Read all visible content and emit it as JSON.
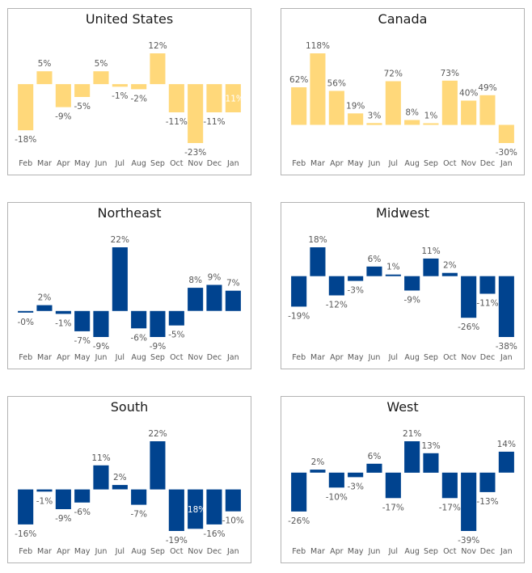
{
  "chart_data": [
    {
      "type": "bar",
      "title": "United States",
      "color": "#FFD87A",
      "categories": [
        "Feb",
        "Mar",
        "Apr",
        "May",
        "Jun",
        "Jul",
        "Aug",
        "Sep",
        "Oct",
        "Nov",
        "Dec",
        "Jan"
      ],
      "values": [
        -18,
        5,
        -9,
        -5,
        5,
        -1,
        -2,
        12,
        -11,
        -23,
        -11,
        -11
      ],
      "labels": [
        "-18%",
        "5%",
        "-9%",
        "-5%",
        "5%",
        "-1%",
        "-2%",
        "12%",
        "-11%",
        "-23%",
        "-11%",
        "-11%"
      ],
      "inside_label_index": [
        11
      ],
      "xlabel": "",
      "ylabel": "",
      "grid": false,
      "legend": "none"
    },
    {
      "type": "bar",
      "title": "Canada",
      "color": "#FFD87A",
      "categories": [
        "Feb",
        "Mar",
        "Apr",
        "May",
        "Jun",
        "Jul",
        "Aug",
        "Sep",
        "Oct",
        "Nov",
        "Dec",
        "Jan"
      ],
      "values": [
        62,
        118,
        56,
        19,
        3,
        72,
        8,
        1,
        73,
        40,
        49,
        -30
      ],
      "labels": [
        "62%",
        "118%",
        "56%",
        "19%",
        "3%",
        "72%",
        "8%",
        "1%",
        "73%",
        "40%",
        "49%",
        "-30%"
      ],
      "inside_label_index": [],
      "xlabel": "",
      "ylabel": "",
      "grid": false,
      "legend": "none"
    },
    {
      "type": "bar",
      "title": "Northeast",
      "color": "#00438F",
      "categories": [
        "Feb",
        "Mar",
        "Apr",
        "May",
        "Jun",
        "Jul",
        "Aug",
        "Sep",
        "Oct",
        "Nov",
        "Dec",
        "Jan"
      ],
      "values": [
        -0.4,
        2,
        -1,
        -7,
        -9,
        22,
        -6,
        -9,
        -5,
        8,
        9,
        7
      ],
      "labels": [
        "-0%",
        "2%",
        "-1%",
        "-7%",
        "-9%",
        "22%",
        "-6%",
        "-9%",
        "-5%",
        "8%",
        "9%",
        "7%"
      ],
      "inside_label_index": [],
      "xlabel": "",
      "ylabel": "",
      "grid": false,
      "legend": "none"
    },
    {
      "type": "bar",
      "title": "Midwest",
      "color": "#00438F",
      "categories": [
        "Feb",
        "Mar",
        "Apr",
        "May",
        "Jun",
        "Jul",
        "Aug",
        "Sep",
        "Oct",
        "Nov",
        "Dec",
        "Jan"
      ],
      "values": [
        -19,
        18,
        -12,
        -3,
        6,
        1,
        -9,
        11,
        2,
        -26,
        -11,
        -38
      ],
      "labels": [
        "-19%",
        "18%",
        "-12%",
        "-3%",
        "6%",
        "1%",
        "-9%",
        "11%",
        "2%",
        "-26%",
        "-11%",
        "-38%"
      ],
      "inside_label_index": [],
      "xlabel": "",
      "ylabel": "",
      "grid": false,
      "legend": "none"
    },
    {
      "type": "bar",
      "title": "South",
      "color": "#00438F",
      "categories": [
        "Feb",
        "Mar",
        "Apr",
        "May",
        "Jun",
        "Jul",
        "Aug",
        "Sep",
        "Oct",
        "Nov",
        "Dec",
        "Jan"
      ],
      "values": [
        -16,
        -1,
        -9,
        -6,
        11,
        2,
        -7,
        22,
        -19,
        -18,
        -16,
        -10
      ],
      "labels": [
        "-16%",
        "-1%",
        "-9%",
        "-6%",
        "11%",
        "2%",
        "-7%",
        "22%",
        "-19%",
        "-18%",
        "-16%",
        "-10%"
      ],
      "inside_label_index": [
        9
      ],
      "xlabel": "",
      "ylabel": "",
      "grid": false,
      "legend": "none"
    },
    {
      "type": "bar",
      "title": "West",
      "color": "#00438F",
      "categories": [
        "Feb",
        "Mar",
        "Apr",
        "May",
        "Jun",
        "Jul",
        "Aug",
        "Sep",
        "Oct",
        "Nov",
        "Dec",
        "Jan"
      ],
      "values": [
        -26,
        2,
        -10,
        -3,
        6,
        -17,
        21,
        13,
        -17,
        -39,
        -13,
        14
      ],
      "labels": [
        "-26%",
        "2%",
        "-10%",
        "-3%",
        "6%",
        "-17%",
        "21%",
        "13%",
        "-17%",
        "-39%",
        "-13%",
        "14%"
      ],
      "inside_label_index": [],
      "xlabel": "",
      "ylabel": "",
      "grid": false,
      "legend": "none"
    }
  ]
}
